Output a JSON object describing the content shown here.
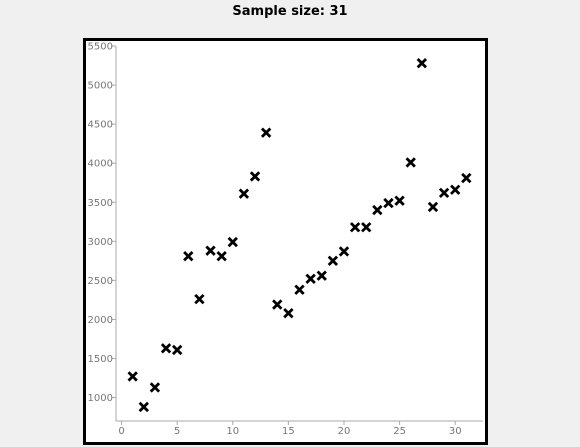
{
  "chart_data": {
    "type": "scatter",
    "title": "Sample size: 31",
    "xlabel": "",
    "ylabel": "",
    "xlim": [
      -0.5,
      32.5
    ],
    "ylim": [
      700,
      5500
    ],
    "xticks": [
      0,
      5,
      10,
      15,
      20,
      25,
      30
    ],
    "yticks": [
      1000,
      1500,
      2000,
      2500,
      3000,
      3500,
      4000,
      4500,
      5000,
      5500
    ],
    "grid": false,
    "marker": "x",
    "marker_color": "#000000",
    "points": [
      {
        "x": 1,
        "y": 1270
      },
      {
        "x": 2,
        "y": 880
      },
      {
        "x": 3,
        "y": 1130
      },
      {
        "x": 4,
        "y": 1630
      },
      {
        "x": 5,
        "y": 1610
      },
      {
        "x": 6,
        "y": 2810
      },
      {
        "x": 7,
        "y": 2260
      },
      {
        "x": 8,
        "y": 2880
      },
      {
        "x": 9,
        "y": 2810
      },
      {
        "x": 10,
        "y": 2990
      },
      {
        "x": 11,
        "y": 3610
      },
      {
        "x": 12,
        "y": 3830
      },
      {
        "x": 13,
        "y": 4390
      },
      {
        "x": 14,
        "y": 2190
      },
      {
        "x": 15,
        "y": 2080
      },
      {
        "x": 16,
        "y": 2380
      },
      {
        "x": 17,
        "y": 2520
      },
      {
        "x": 18,
        "y": 2560
      },
      {
        "x": 19,
        "y": 2750
      },
      {
        "x": 20,
        "y": 2870
      },
      {
        "x": 21,
        "y": 3180
      },
      {
        "x": 22,
        "y": 3180
      },
      {
        "x": 23,
        "y": 3400
      },
      {
        "x": 24,
        "y": 3490
      },
      {
        "x": 25,
        "y": 3520
      },
      {
        "x": 26,
        "y": 4010
      },
      {
        "x": 27,
        "y": 5280
      },
      {
        "x": 28,
        "y": 3440
      },
      {
        "x": 29,
        "y": 3620
      },
      {
        "x": 30,
        "y": 3660
      },
      {
        "x": 31,
        "y": 3810
      }
    ]
  }
}
